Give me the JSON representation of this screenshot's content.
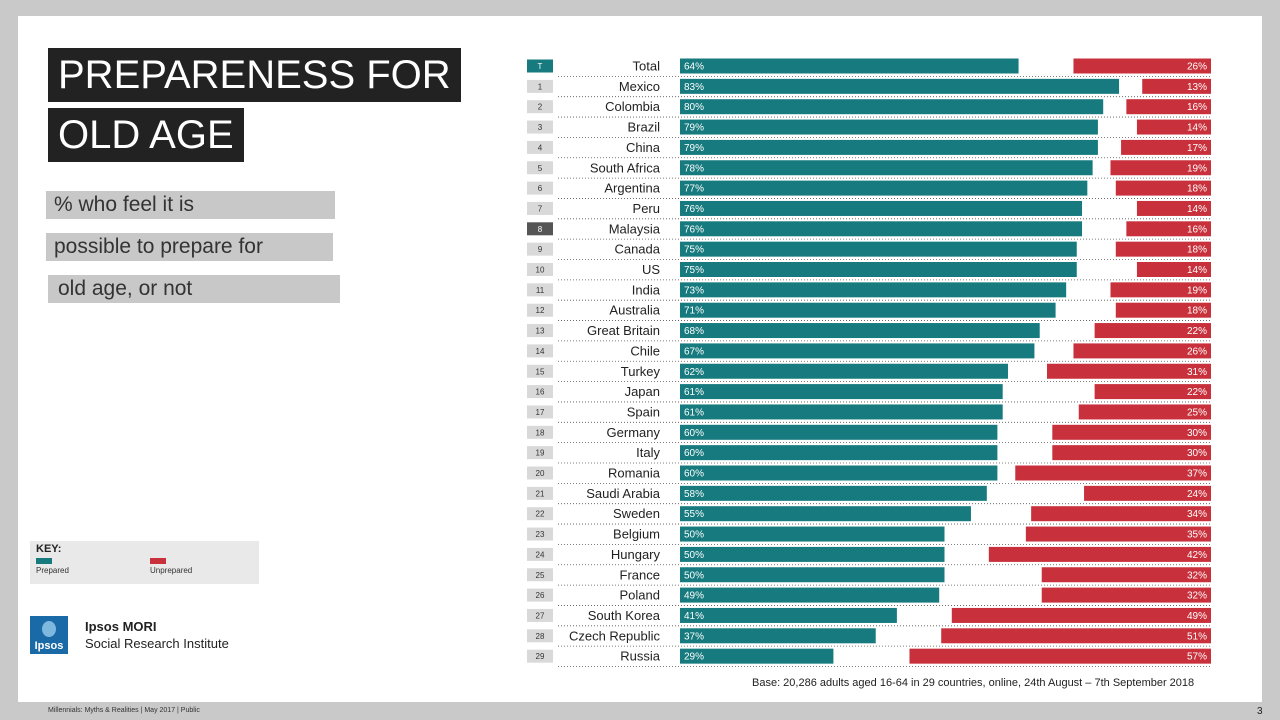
{
  "title_lines": [
    "PREPARENESS FOR",
    "OLD AGE"
  ],
  "subtitle_lines": [
    "% who feel it is",
    "possible to prepare for",
    "old age, or not"
  ],
  "key": {
    "title": "KEY:",
    "prepared_label": "Prepared",
    "unprepared_label": "Unprepared"
  },
  "brand": {
    "name": "Ipsos MORI",
    "division": "Social Research Institute",
    "logo_text": "Ipsos"
  },
  "base_note": "Base: 20,286  adults aged 16-64 in 29 countries, online, 24th August – 7th September 2018",
  "footer": "Millennials: Myths & Realities | May  2017 | Public",
  "page_number": "3",
  "colors": {
    "prepared": "#167a7e",
    "unprepared": "#c8313c",
    "rank_bg": "#d9d9d9",
    "rank_total": "#167a7e",
    "rank_highlight": "#555555"
  },
  "chart_data": {
    "type": "bar",
    "stacked_diverging": true,
    "series_names": [
      "Prepared",
      "Unprepared"
    ],
    "unit": "%",
    "rows": [
      {
        "rank": "T",
        "country": "Total",
        "prepared": 64,
        "unprepared": 26
      },
      {
        "rank": "1",
        "country": "Mexico",
        "prepared": 83,
        "unprepared": 13
      },
      {
        "rank": "2",
        "country": "Colombia",
        "prepared": 80,
        "unprepared": 16
      },
      {
        "rank": "3",
        "country": "Brazil",
        "prepared": 79,
        "unprepared": 14
      },
      {
        "rank": "4",
        "country": "China",
        "prepared": 79,
        "unprepared": 17
      },
      {
        "rank": "5",
        "country": "South Africa",
        "prepared": 78,
        "unprepared": 19
      },
      {
        "rank": "6",
        "country": "Argentina",
        "prepared": 77,
        "unprepared": 18
      },
      {
        "rank": "7",
        "country": "Peru",
        "prepared": 76,
        "unprepared": 14
      },
      {
        "rank": "8",
        "country": "Malaysia",
        "prepared": 76,
        "unprepared": 16,
        "highlight": true
      },
      {
        "rank": "9",
        "country": "Canada",
        "prepared": 75,
        "unprepared": 18
      },
      {
        "rank": "10",
        "country": "US",
        "prepared": 75,
        "unprepared": 14
      },
      {
        "rank": "11",
        "country": "India",
        "prepared": 73,
        "unprepared": 19
      },
      {
        "rank": "12",
        "country": "Australia",
        "prepared": 71,
        "unprepared": 18
      },
      {
        "rank": "13",
        "country": "Great Britain",
        "prepared": 68,
        "unprepared": 22
      },
      {
        "rank": "14",
        "country": "Chile",
        "prepared": 67,
        "unprepared": 26
      },
      {
        "rank": "15",
        "country": "Turkey",
        "prepared": 62,
        "unprepared": 31
      },
      {
        "rank": "16",
        "country": "Japan",
        "prepared": 61,
        "unprepared": 22
      },
      {
        "rank": "17",
        "country": "Spain",
        "prepared": 61,
        "unprepared": 25
      },
      {
        "rank": "18",
        "country": "Germany",
        "prepared": 60,
        "unprepared": 30
      },
      {
        "rank": "19",
        "country": "Italy",
        "prepared": 60,
        "unprepared": 30
      },
      {
        "rank": "20",
        "country": "Romania",
        "prepared": 60,
        "unprepared": 37
      },
      {
        "rank": "21",
        "country": "Saudi Arabia",
        "prepared": 58,
        "unprepared": 24
      },
      {
        "rank": "22",
        "country": "Sweden",
        "prepared": 55,
        "unprepared": 34
      },
      {
        "rank": "23",
        "country": "Belgium",
        "prepared": 50,
        "unprepared": 35
      },
      {
        "rank": "24",
        "country": "Hungary",
        "prepared": 50,
        "unprepared": 42
      },
      {
        "rank": "25",
        "country": "France",
        "prepared": 50,
        "unprepared": 32
      },
      {
        "rank": "26",
        "country": "Poland",
        "prepared": 49,
        "unprepared": 32
      },
      {
        "rank": "27",
        "country": "South Korea",
        "prepared": 41,
        "unprepared": 49
      },
      {
        "rank": "28",
        "country": "Czech Republic",
        "prepared": 37,
        "unprepared": 51
      },
      {
        "rank": "29",
        "country": "Russia",
        "prepared": 29,
        "unprepared": 57
      }
    ]
  }
}
